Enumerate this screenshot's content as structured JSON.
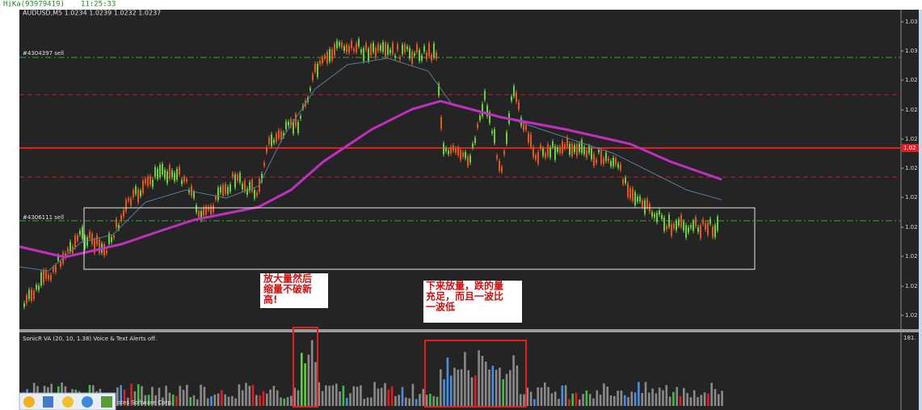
{
  "header": {
    "title": "HiKa(93979419)",
    "time": "11:25:33"
  },
  "chart": {
    "symbol_info": "AUDUSD,M5  1.0234 1.0239 1.0232 1.0237",
    "orders": [
      "#4304397 sell",
      "#4306111 sell"
    ],
    "price_labels": [
      "1.03",
      "1.03",
      "1.02",
      "1.02",
      "1.02",
      "1.02",
      "1.02",
      "1.02",
      "1.02",
      "1.02",
      "1.02"
    ],
    "current_price": "1.02"
  },
  "annotations": [
    {
      "lines": [
        "放大量然后",
        "缩量不破新",
        "高!"
      ]
    },
    {
      "lines": [
        "下来放量，跌的量",
        "充足，而且一波比",
        "一波低"
      ]
    }
  ],
  "indicator": {
    "label": "SonicR VA  (20, 10, 1.38)   Voice & Text Alerts off.",
    "max": "181.",
    "footer": "otes Software Corp."
  }
}
